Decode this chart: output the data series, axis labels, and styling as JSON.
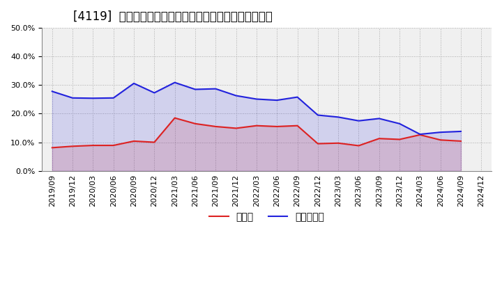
{
  "title": "[4119]  現預金、有利子負債の総資産に対する比率の推移",
  "x_labels": [
    "2019/09",
    "2019/12",
    "2020/03",
    "2020/06",
    "2020/09",
    "2020/12",
    "2021/03",
    "2021/06",
    "2021/09",
    "2021/12",
    "2022/03",
    "2022/06",
    "2022/09",
    "2022/12",
    "2023/03",
    "2023/06",
    "2023/09",
    "2023/12",
    "2024/03",
    "2024/06",
    "2024/09",
    "2024/12"
  ],
  "cash": [
    0.081,
    0.086,
    0.089,
    0.089,
    0.104,
    0.1,
    0.185,
    0.165,
    0.155,
    0.149,
    0.158,
    0.155,
    0.158,
    0.095,
    0.097,
    0.088,
    0.113,
    0.11,
    0.126,
    0.108,
    0.104,
    null
  ],
  "debt": [
    0.278,
    0.255,
    0.254,
    0.255,
    0.306,
    0.273,
    0.309,
    0.285,
    0.287,
    0.263,
    0.251,
    0.247,
    0.258,
    0.195,
    0.188,
    0.175,
    0.183,
    0.165,
    0.128,
    0.135,
    0.138,
    null
  ],
  "ylim": [
    0.0,
    0.5
  ],
  "yticks": [
    0.0,
    0.1,
    0.2,
    0.3,
    0.4,
    0.5
  ],
  "cash_color": "#dd2222",
  "debt_color": "#2222dd",
  "legend_cash": "現預金",
  "legend_debt": "有利子負債",
  "bg_color": "#f0f0f0",
  "grid_color": "#aaaaaa",
  "title_fontsize": 12,
  "axis_fontsize": 8,
  "legend_fontsize": 10
}
